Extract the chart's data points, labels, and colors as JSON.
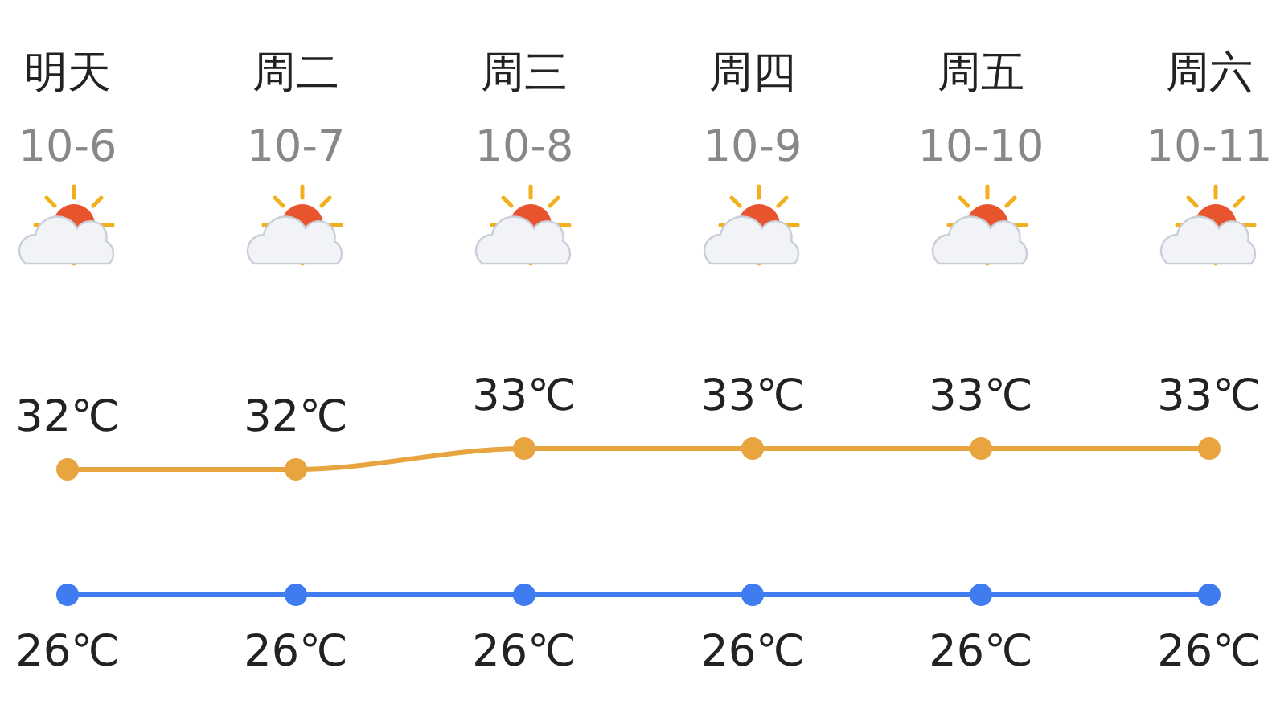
{
  "chart_data": {
    "type": "line",
    "categories": [
      "明天\n10-6",
      "周二\n10-7",
      "周三\n10-8",
      "周四\n10-9",
      "周五\n10-10",
      "周六\n10-11"
    ],
    "tick_labels": false,
    "marker": "circle",
    "series": [
      {
        "color": "#e8a43f",
        "values": [
          32,
          32,
          33,
          33,
          33,
          33
        ],
        "value_labels": [
          "32℃",
          "32℃",
          "33℃",
          "33℃",
          "33℃",
          "33℃"
        ]
      },
      {
        "color": "#3f7cf0",
        "values": [
          26,
          26,
          26,
          26,
          26,
          26
        ],
        "value_labels": [
          "26℃",
          "26℃",
          "26℃",
          "26℃",
          "26℃",
          "26℃"
        ]
      }
    ]
  }
}
